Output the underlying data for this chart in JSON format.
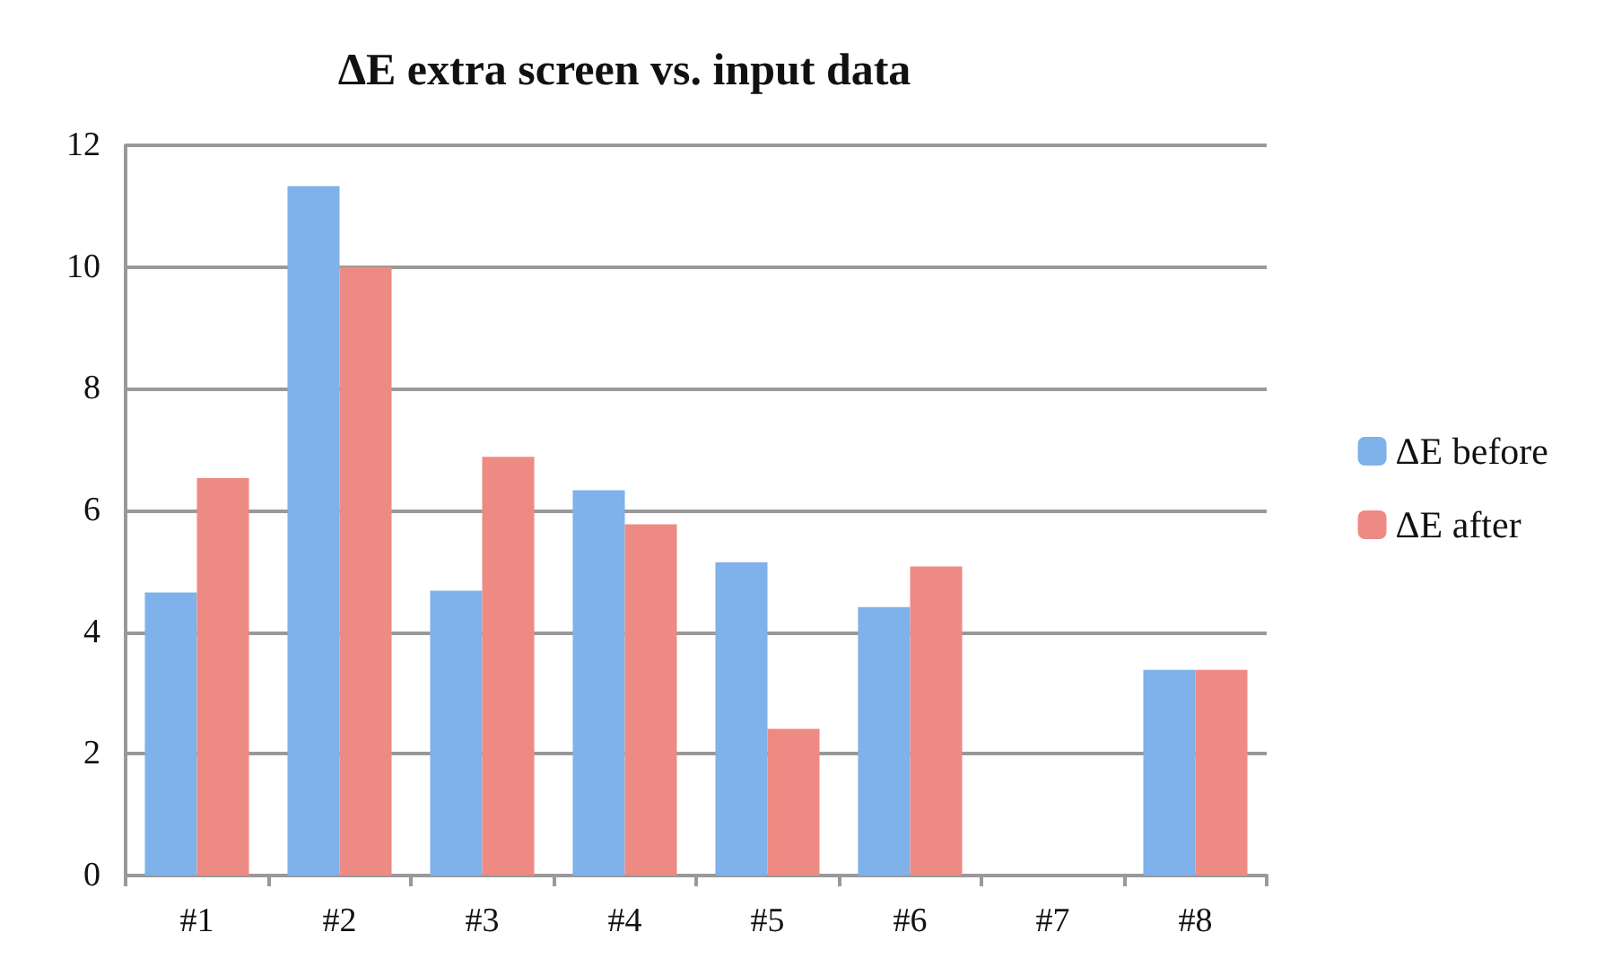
{
  "chart_data": {
    "type": "bar",
    "title": "ΔE extra screen vs. input data",
    "categories": [
      "#1",
      "#2",
      "#3",
      "#4",
      "#5",
      "#6",
      "#7",
      "#8"
    ],
    "series": [
      {
        "name": "ΔE before",
        "color": "#7fb1ea",
        "values": [
          4.65,
          11.33,
          4.68,
          6.33,
          5.15,
          4.41,
          null,
          3.38
        ]
      },
      {
        "name": "ΔE after",
        "color": "#ee8a84",
        "values": [
          6.53,
          10.0,
          6.88,
          5.77,
          2.41,
          5.08,
          null,
          3.38
        ]
      }
    ],
    "ylim": [
      0,
      12
    ],
    "yticks": [
      0,
      2,
      4,
      6,
      8,
      10,
      12
    ],
    "grid": "y",
    "legend": "right"
  }
}
